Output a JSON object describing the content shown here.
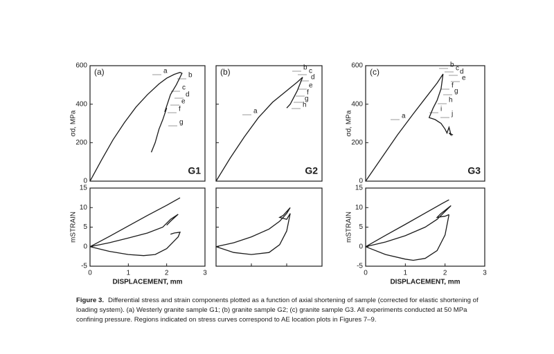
{
  "chart_data": [
    {
      "type": "line",
      "panel_label": "(a)",
      "sample": "G1",
      "ylabel": "σd, MPa",
      "color": "#1a1a1a",
      "xlim": [
        0,
        3
      ],
      "ylim": [
        0,
        600
      ],
      "yticks": [
        0,
        200,
        400,
        600
      ],
      "ytick_labels": true,
      "region_labels": [
        "a",
        "b",
        "c",
        "d",
        "e",
        "f",
        "g"
      ],
      "series": [
        {
          "x": [
            0,
            0.3,
            0.6,
            0.9,
            1.2,
            1.5,
            1.8,
            2.0,
            2.2,
            2.35,
            2.4,
            2.25,
            2.1,
            1.95,
            2.0,
            1.9,
            1.8,
            1.7,
            1.6
          ],
          "values": [
            0,
            110,
            215,
            305,
            385,
            450,
            505,
            535,
            555,
            565,
            560,
            500,
            450,
            360,
            380,
            320,
            270,
            200,
            150
          ]
        }
      ]
    },
    {
      "type": "line",
      "panel_label": "(b)",
      "sample": "G2",
      "color": "#1a1a1a",
      "xlim": [
        0,
        3
      ],
      "ylim": [
        0,
        600
      ],
      "yticks": [
        0,
        200,
        400,
        600
      ],
      "ytick_labels": false,
      "region_labels": [
        "a",
        "b",
        "c",
        "d",
        "e",
        "f",
        "g",
        "h"
      ],
      "series": [
        {
          "x": [
            0,
            0.4,
            0.8,
            1.2,
            1.6,
            2.0,
            2.3,
            2.45,
            2.3,
            2.1,
            2.0
          ],
          "values": [
            0,
            120,
            230,
            330,
            410,
            470,
            515,
            540,
            470,
            400,
            380
          ]
        }
      ]
    },
    {
      "type": "line",
      "panel_label": "(c)",
      "sample": "G3",
      "ylabel": "σd, MPa",
      "color": "#1a1a1a",
      "xlim": [
        0,
        3
      ],
      "ylim": [
        0,
        600
      ],
      "yticks": [
        0,
        200,
        400,
        600
      ],
      "ytick_labels": true,
      "region_labels": [
        "a",
        "b",
        "c",
        "d",
        "e",
        "f",
        "g",
        "h",
        "i",
        "j"
      ],
      "series": [
        {
          "x": [
            0,
            0.4,
            0.8,
            1.2,
            1.5,
            1.8,
            1.95,
            1.9,
            1.8,
            1.7,
            1.6,
            1.75,
            1.9,
            2.0,
            2.05,
            2.1,
            2.15,
            2.1,
            2.2
          ],
          "values": [
            0,
            120,
            240,
            350,
            430,
            510,
            557,
            480,
            420,
            380,
            330,
            320,
            300,
            270,
            250,
            280,
            240,
            250,
            240
          ]
        }
      ]
    },
    {
      "type": "line",
      "ylabel": "mSTRAIN",
      "xlabel": "DISPLACEMENT, mm",
      "color": "#1a1a1a",
      "xlim": [
        0,
        3
      ],
      "xticks": [
        0,
        1,
        2,
        3
      ],
      "xtick_labels": true,
      "ylim": [
        -5,
        15
      ],
      "yticks": [
        -5,
        0,
        5,
        10,
        15
      ],
      "ytick_labels": true,
      "series": [
        {
          "x": [
            0,
            0.5,
            1,
            1.5,
            2,
            2.35
          ],
          "values": [
            0,
            2.6,
            5.3,
            8,
            10.6,
            12.5
          ]
        },
        {
          "x": [
            0,
            0.5,
            1,
            1.5,
            1.9,
            2.1,
            2.3,
            2.1,
            2.0
          ],
          "values": [
            0,
            1,
            2.2,
            3.5,
            5,
            7,
            8.3,
            6.5,
            5.5
          ]
        },
        {
          "x": [
            0,
            0.5,
            1,
            1.4,
            1.7,
            2.0,
            2.3,
            2.35,
            2.2,
            2.1
          ],
          "values": [
            0,
            -1.2,
            -2,
            -2.3,
            -2,
            -0.5,
            2.5,
            3.7,
            3.5,
            3.2
          ]
        }
      ]
    },
    {
      "type": "line",
      "color": "#1a1a1a",
      "xlim": [
        0,
        3
      ],
      "xticks": [
        0,
        1,
        2,
        3
      ],
      "xtick_labels": false,
      "ylim": [
        -5,
        15
      ],
      "yticks": [
        -5,
        0,
        5,
        10,
        15
      ],
      "ytick_labels": false,
      "series": [
        {
          "x": [
            0,
            0.5,
            1,
            1.5,
            1.8,
            2.0,
            2.1,
            1.9,
            1.8,
            2.0,
            2.1
          ],
          "values": [
            0,
            1,
            2.5,
            4.5,
            6.5,
            8.5,
            10,
            8,
            7.5,
            7,
            8.5
          ]
        },
        {
          "x": [
            0,
            0.5,
            1.0,
            1.5,
            1.8,
            2.0,
            2.1
          ],
          "values": [
            0,
            -1.5,
            -2,
            -1.5,
            0.5,
            4,
            8.5
          ]
        }
      ]
    },
    {
      "type": "line",
      "ylabel": "mSTRAIN",
      "xlabel": "DISPLACEMENT, mm",
      "color": "#1a1a1a",
      "xlim": [
        0,
        3
      ],
      "xticks": [
        0,
        1,
        2,
        3
      ],
      "xtick_labels": true,
      "ylim": [
        -5,
        15
      ],
      "yticks": [
        -5,
        0,
        5,
        10,
        15
      ],
      "ytick_labels": true,
      "series": [
        {
          "x": [
            0,
            0.5,
            1,
            1.5,
            1.9,
            2.1
          ],
          "values": [
            0,
            2.9,
            5.7,
            8.6,
            10.9,
            12
          ]
        },
        {
          "x": [
            0,
            0.5,
            1,
            1.5,
            1.8,
            2.0,
            2.15,
            1.9,
            1.8,
            2.0,
            2.1
          ],
          "values": [
            0,
            1.2,
            2.8,
            5,
            7,
            9,
            10.5,
            8.5,
            7.5,
            7.8,
            8.2
          ]
        },
        {
          "x": [
            0,
            0.5,
            1,
            1.2,
            1.5,
            1.8,
            2.0,
            2.1
          ],
          "values": [
            0,
            -2,
            -3.2,
            -3.5,
            -3,
            -1,
            3,
            8.2
          ]
        }
      ]
    }
  ],
  "caption": {
    "label": "Figure 3.",
    "text": "Differential stress and strain components plotted as a function of axial shortening of sample (corrected for elastic shortening of loading system). (a) Westerly granite sample G1; (b) granite sample G2; (c) granite sample G3. All experiments conducted at 50 MPa confining pressure. Regions indicated on stress curves correspond to AE location plots in Figures 7–9."
  }
}
